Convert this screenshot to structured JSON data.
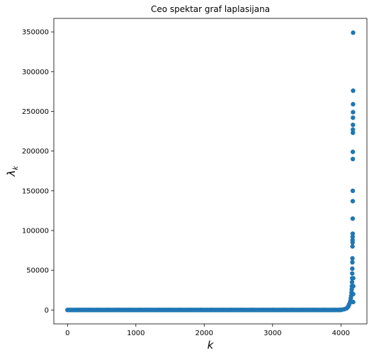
{
  "chart_data": {
    "type": "scatter",
    "title": "Ceo spektar graf laplasijana",
    "xlabel": "k",
    "ylabel": "λ",
    "ylabel_subscript": "k",
    "xlim": [
      -200,
      4380
    ],
    "ylim": [
      -17500,
      367000
    ],
    "xticks": [
      0,
      1000,
      2000,
      3000,
      4000
    ],
    "yticks": [
      0,
      50000,
      100000,
      150000,
      200000,
      250000,
      300000,
      350000
    ],
    "xtick_labels": [
      "0",
      "1000",
      "2000",
      "3000",
      "4000"
    ],
    "ytick_labels": [
      "0",
      "50000",
      "100000",
      "150000",
      "200000",
      "250000",
      "300000",
      "350000"
    ],
    "grid": false,
    "legend": "none",
    "color": "#1f77b4",
    "series": [
      {
        "x": [
          0,
          150,
          300,
          450,
          600,
          750,
          900,
          1050,
          1200,
          1350,
          1500,
          1650,
          1800,
          1950,
          2100,
          2250,
          2400,
          2550,
          2700,
          2850,
          3000,
          3150,
          3300,
          3450,
          3600,
          3750,
          3900,
          3980,
          4020,
          4050,
          4080,
          4100,
          4110,
          4120,
          4130,
          4140,
          4145,
          4150,
          4155,
          4158,
          4160,
          4162,
          4164,
          4165,
          4166,
          4167,
          4168,
          4169,
          4170,
          4170,
          4171,
          4172,
          4172,
          4173,
          4173,
          4174,
          4174,
          4175,
          4175,
          4176,
          4176,
          4177,
          4177,
          4178,
          4178,
          4179,
          4179,
          4180,
          4180
        ],
        "y": [
          0,
          0,
          0,
          0,
          0,
          0,
          0,
          0,
          0,
          0,
          0,
          0,
          0,
          0,
          0,
          0,
          0,
          0,
          0,
          0,
          0,
          0,
          0,
          0,
          0,
          0,
          0,
          200,
          500,
          1000,
          2000,
          3500,
          5000,
          7000,
          9000,
          12000,
          15000,
          18000,
          22000,
          26000,
          30000,
          35000,
          40000,
          46000,
          52000,
          60000,
          65000,
          80000,
          85000,
          88000,
          92000,
          96000,
          115000,
          137000,
          150000,
          190000,
          199000,
          223000,
          227000,
          233000,
          242000,
          249000,
          259000,
          276000,
          349000,
          10000,
          20000,
          30000,
          40000
        ]
      }
    ]
  }
}
